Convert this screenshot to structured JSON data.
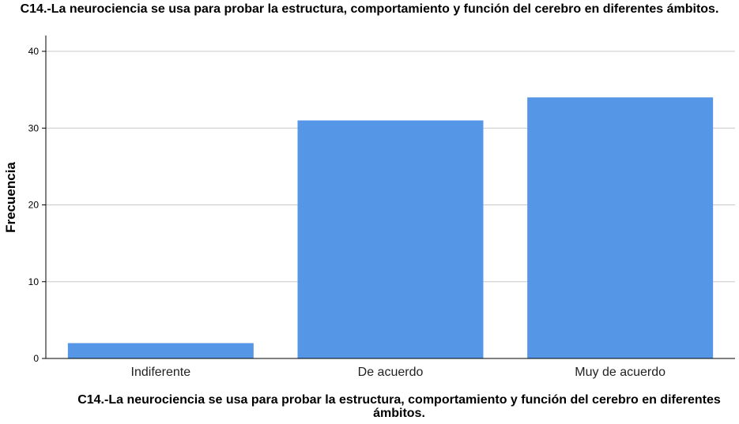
{
  "chart_data": {
    "type": "bar",
    "title": "C14.-La neurociencia se usa para probar la estructura, comportamiento y función del cerebro en diferentes ámbitos.",
    "xlabel": "C14.-La neurociencia se usa para probar la estructura, comportamiento y función del cerebro en diferentes ámbitos.",
    "ylabel": "Frecuencia",
    "categories": [
      "Indiferente",
      "De acuerdo",
      "Muy de acuerdo"
    ],
    "values": [
      2,
      31,
      34
    ],
    "ylim": [
      0,
      40
    ],
    "yticks": [
      0,
      10,
      20,
      30,
      40
    ],
    "grid": true,
    "bar_color": "#5596E6"
  }
}
